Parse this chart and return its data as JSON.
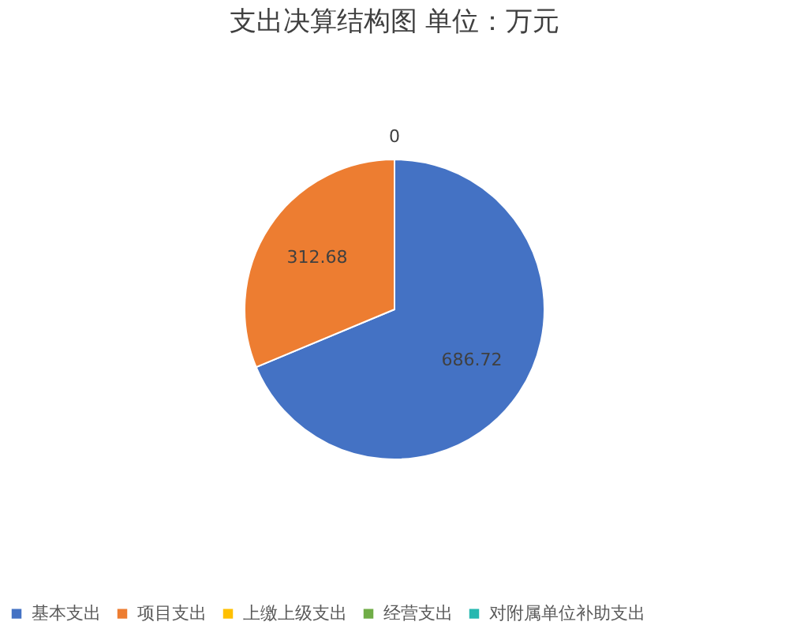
{
  "chart_data": {
    "type": "pie",
    "title": "支出决算结构图         单位：万元",
    "categories": [
      "基本支出",
      "项目支出",
      "上缴上级支出",
      "经营支出",
      "对附属单位补助支出"
    ],
    "values": [
      686.72,
      312.68,
      0,
      0,
      0
    ],
    "colors": [
      "#4472c4",
      "#ed7d31",
      "#ffc000",
      "#70ad47",
      "#26b8b0"
    ],
    "value_labels": [
      "686.72",
      "312.68",
      "0",
      null,
      null
    ],
    "legend": "bottom"
  }
}
